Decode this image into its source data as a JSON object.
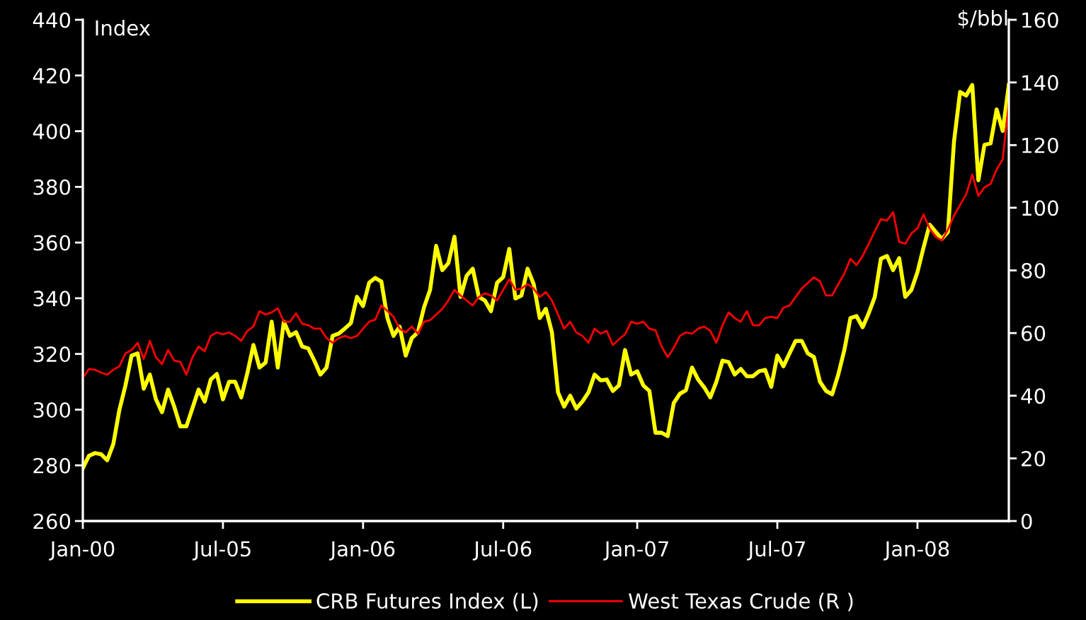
{
  "chart_data": {
    "type": "line",
    "ylabel": "Index",
    "y2label": "$/bbl",
    "categories": [
      "Jan-00",
      null,
      null,
      null,
      null,
      null,
      null,
      null,
      null,
      null,
      null,
      null,
      null,
      null,
      null,
      null,
      null,
      null,
      null,
      null,
      null,
      null,
      null,
      "Jul-05",
      null,
      null,
      null,
      null,
      null,
      null,
      null,
      null,
      null,
      null,
      null,
      null,
      null,
      null,
      null,
      null,
      null,
      null,
      null,
      null,
      null,
      null,
      "Jan-06",
      null,
      null,
      null,
      null,
      null,
      null,
      null,
      null,
      null,
      null,
      null,
      null,
      null,
      null,
      null,
      null,
      null,
      null,
      null,
      null,
      null,
      null,
      "Jul-06",
      null,
      null,
      null,
      null,
      null,
      null,
      null,
      null,
      null,
      null,
      null,
      null,
      null,
      null,
      null,
      null,
      null,
      null,
      null,
      null,
      null,
      "Jan-07",
      null,
      null,
      null,
      null,
      null,
      null,
      null,
      null,
      null,
      null,
      null,
      null,
      null,
      null,
      null,
      null,
      null,
      null,
      null,
      null,
      null,
      null,
      "Jul-07",
      null,
      null,
      null,
      null,
      null,
      null,
      null,
      null,
      null,
      null,
      null,
      null,
      null,
      null,
      null,
      null,
      null,
      null,
      null,
      null,
      null,
      null,
      "Jan-08",
      null,
      null,
      null,
      null,
      null,
      null,
      null,
      null,
      null,
      null,
      null,
      null,
      null,
      null,
      null
    ],
    "ylim": [
      260,
      440
    ],
    "yticks": [
      260,
      280,
      300,
      320,
      340,
      360,
      380,
      400,
      420,
      440
    ],
    "y2lim": [
      0,
      160
    ],
    "y2ticks": [
      0,
      20,
      40,
      60,
      80,
      100,
      120,
      140,
      160
    ],
    "legend": "bottom",
    "series": [
      {
        "name": "CRB Futures Index (L)",
        "color": "#ffff00",
        "axis": "y",
        "values": [
          279,
          283.4,
          284.4,
          284,
          281.8,
          287.6,
          299.9,
          308.7,
          319.4,
          320.2,
          307.5,
          312.6,
          303.7,
          299.1,
          307.2,
          301.1,
          294,
          294,
          300.6,
          307.2,
          302.9,
          310.8,
          312.8,
          303.7,
          310,
          310,
          304.4,
          313.1,
          323.2,
          315.1,
          316.9,
          331.6,
          315.1,
          331.6,
          326.5,
          327.8,
          322.7,
          322,
          317.6,
          312.6,
          315.1,
          326.5,
          327.3,
          329.1,
          331.1,
          340.5,
          337.2,
          345.6,
          347.3,
          346,
          332.9,
          326.5,
          329.8,
          319.4,
          325.7,
          327.8,
          336.7,
          343,
          358.8,
          350.1,
          352.6,
          362.1,
          340.5,
          348.1,
          350.6,
          340.5,
          339.2,
          335.4,
          345.6,
          347.6,
          357.7,
          339.9,
          341,
          350.6,
          345.1,
          332.9,
          336.2,
          327.8,
          306.2,
          301.1,
          305,
          300.4,
          302.9,
          306.2,
          312.6,
          310.5,
          310.8,
          306.7,
          308.7,
          321.4,
          312.6,
          313.8,
          308.7,
          306.7,
          291.7,
          291.7,
          290.5,
          302.4,
          305.7,
          307,
          315.1,
          310.8,
          308,
          304.4,
          310,
          317.6,
          317.1,
          312.6,
          314.6,
          312,
          312,
          313.8,
          314.3,
          308.2,
          319.4,
          315.6,
          320.2,
          324.7,
          324.7,
          320.2,
          318.9,
          310,
          306.7,
          305.5,
          312.6,
          321.4,
          332.9,
          333.6,
          329.6,
          334.6,
          340.5,
          354.2,
          355.2,
          350.1,
          354.4,
          340.5,
          343,
          349.4,
          358.2,
          366.4,
          363.8,
          361.3,
          363.8,
          396.3,
          414.1,
          412.8,
          416.6,
          382.4,
          395.1,
          395.6,
          407.8,
          400.1,
          416.6
        ]
      },
      {
        "name": "West Texas Crude (R )",
        "color": "#ff0000",
        "axis": "y2",
        "values": [
          45.6,
          48.5,
          48.3,
          47.4,
          46.7,
          48.3,
          49.4,
          53.5,
          54.6,
          56.9,
          51.7,
          57.5,
          52.3,
          50.1,
          54.6,
          51.2,
          50.8,
          46.7,
          52.3,
          55.7,
          54.2,
          59.1,
          60.2,
          59.6,
          60.2,
          59.1,
          57.5,
          60.7,
          62.1,
          67,
          65.9,
          66.6,
          67.9,
          63.6,
          63.6,
          66.3,
          63,
          62.5,
          61.4,
          61.4,
          58.4,
          56.9,
          58.4,
          59.1,
          58.4,
          59.1,
          61.4,
          63.6,
          64.3,
          68.8,
          67,
          65.2,
          61.4,
          60.2,
          62.1,
          59.8,
          63.6,
          64.1,
          65.9,
          67.7,
          70.4,
          73.8,
          72,
          70.4,
          68.8,
          71.5,
          72.7,
          72,
          70.4,
          73.8,
          77.2,
          73.8,
          74.2,
          75.6,
          74.2,
          71.5,
          73.1,
          70.4,
          65.9,
          61.4,
          63.6,
          60.2,
          59.1,
          56.9,
          61.4,
          59.8,
          60.7,
          56.2,
          58,
          59.6,
          63.6,
          63,
          63.6,
          61.4,
          60.9,
          55.7,
          52.3,
          55.3,
          59.1,
          60.2,
          59.8,
          61.4,
          62.1,
          60.7,
          56.9,
          62.5,
          66.6,
          64.8,
          63.6,
          67,
          62.5,
          62.5,
          64.8,
          65.2,
          64.8,
          68.1,
          68.8,
          71.5,
          74.2,
          76,
          77.8,
          76.5,
          72,
          72,
          75.6,
          79,
          83.7,
          81.7,
          84.6,
          88.5,
          92.5,
          96.4,
          95.9,
          98.6,
          89.1,
          88.5,
          91.8,
          93.4,
          97.9,
          93.4,
          90.7,
          89.6,
          93,
          97.5,
          100.9,
          104.3,
          110.6,
          103.8,
          106.5,
          107.6,
          112.2,
          115.5,
          133.6
        ]
      }
    ]
  }
}
